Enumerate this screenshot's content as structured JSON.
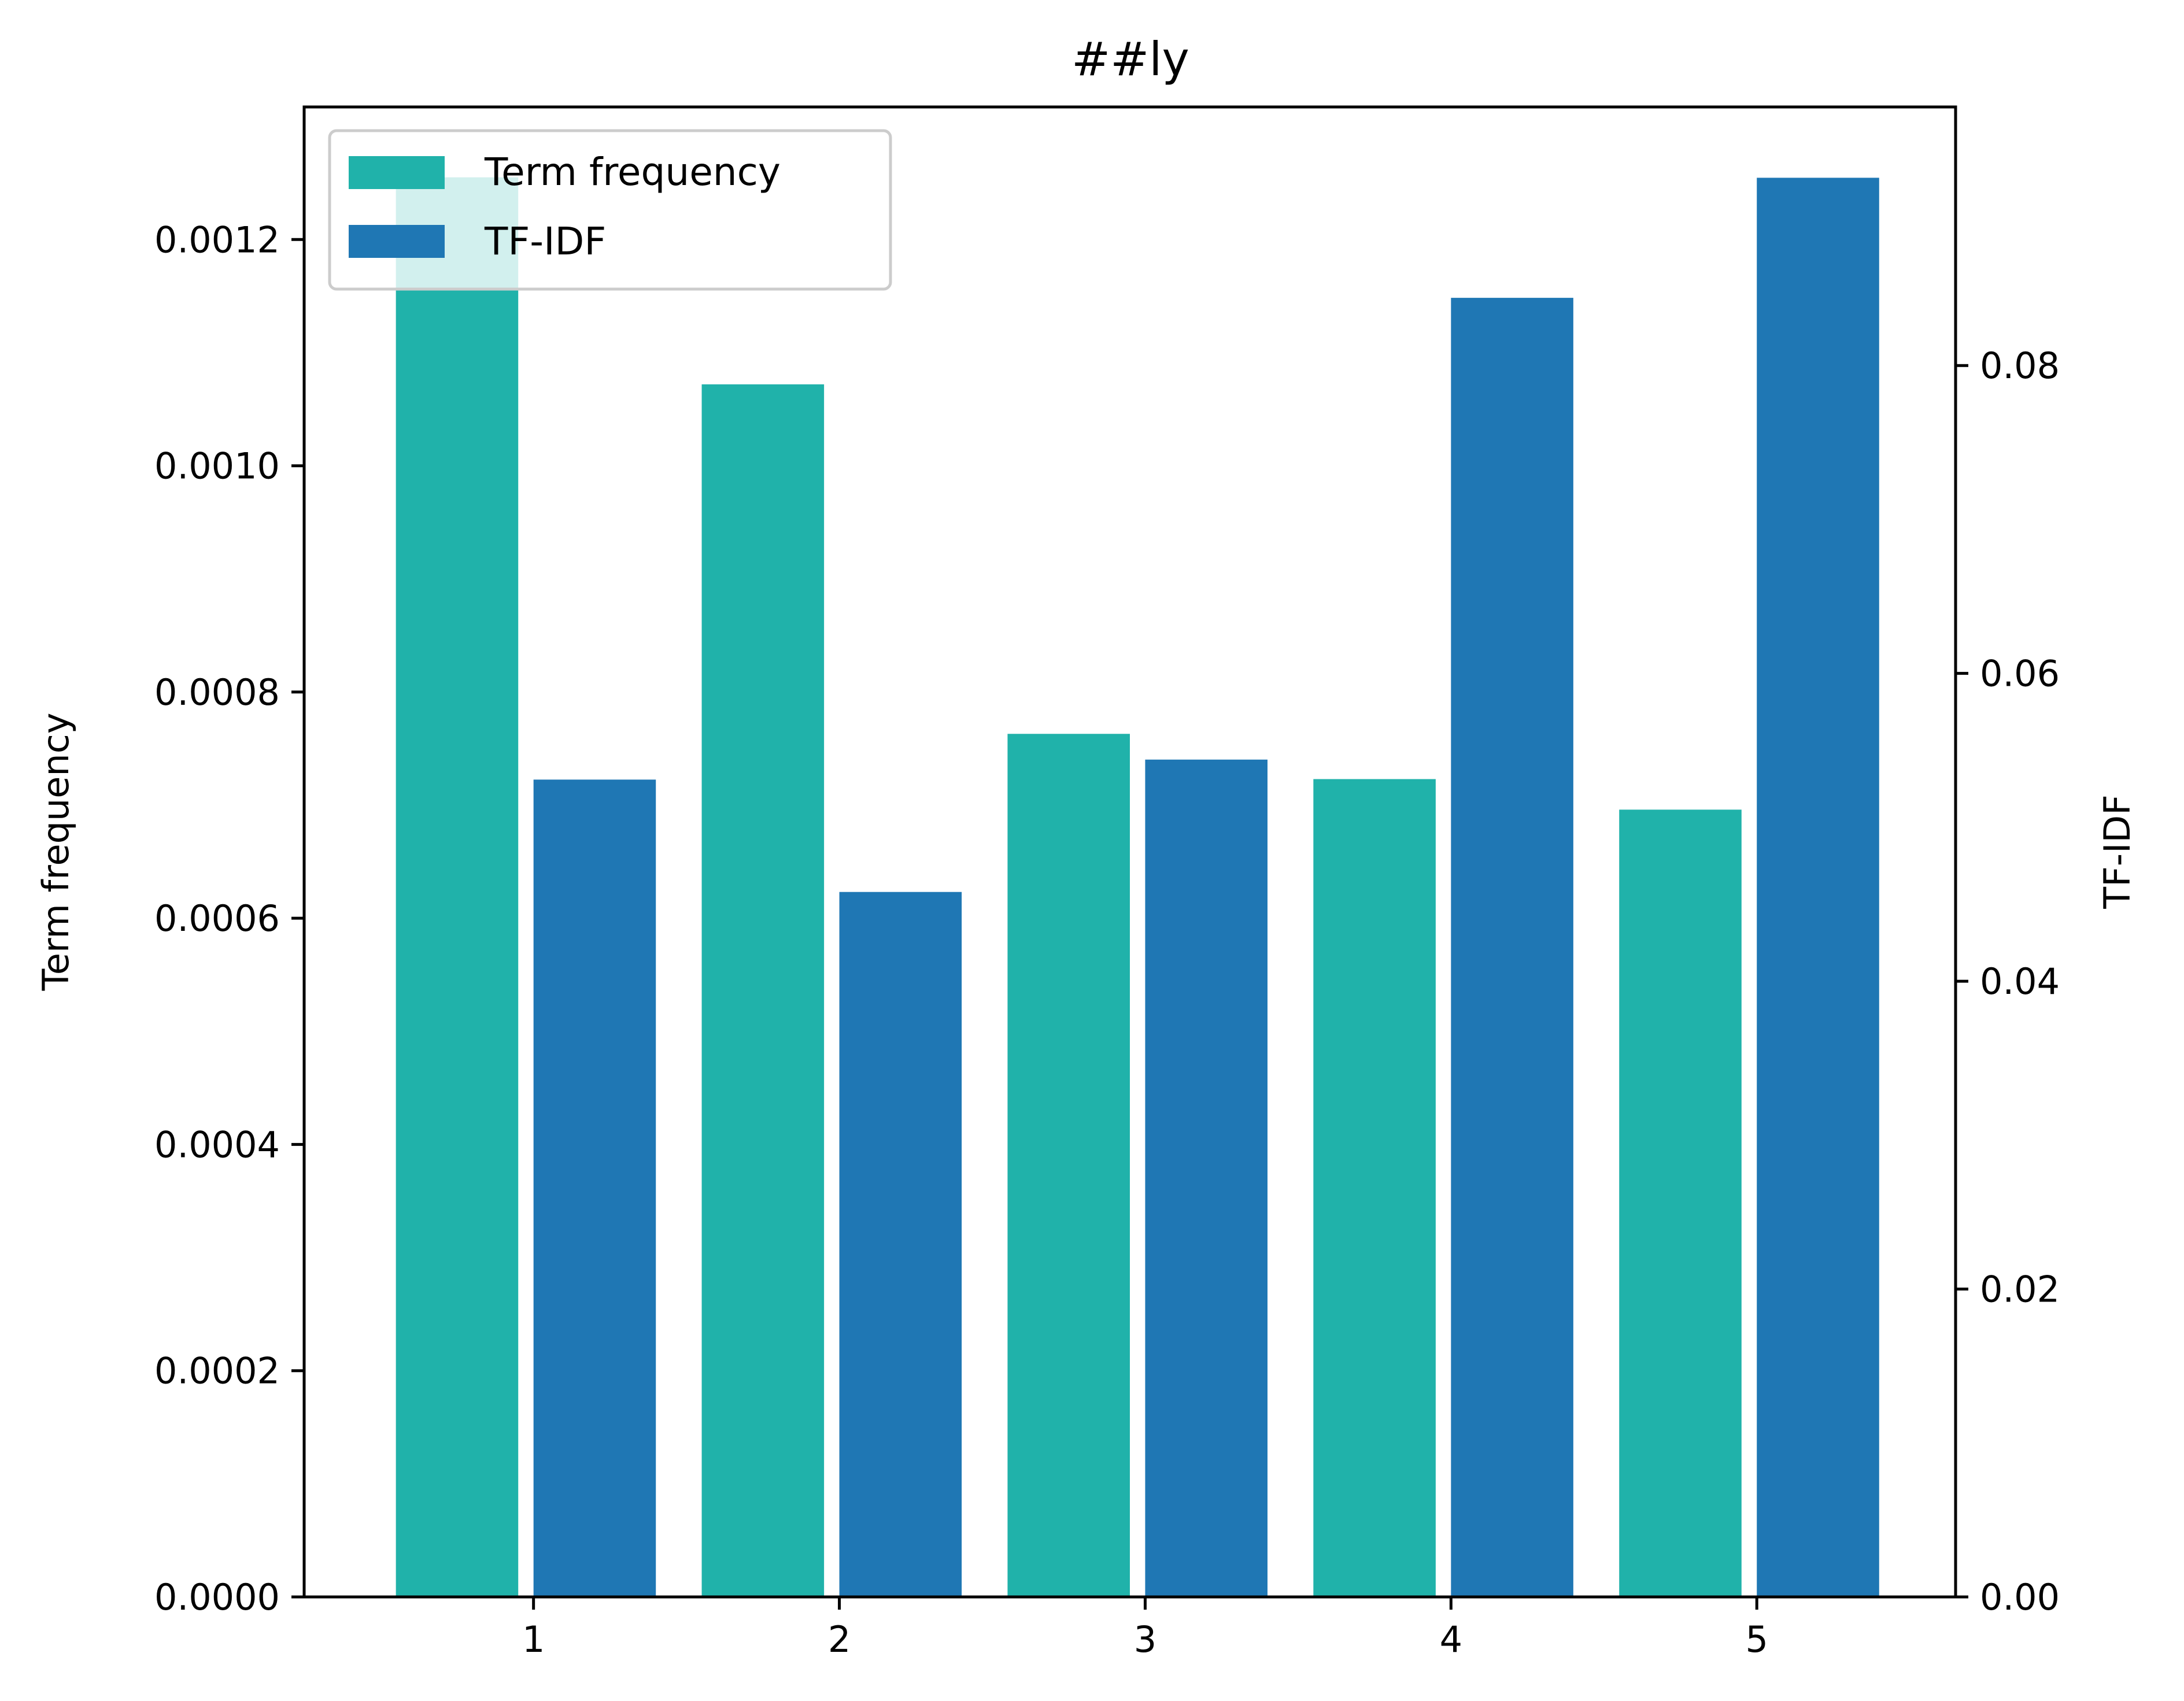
{
  "chart_data": {
    "type": "bar",
    "title": "##ly",
    "x": [
      1,
      2,
      3,
      4,
      5
    ],
    "xlim": [
      0.25,
      5.65
    ],
    "xticks": [
      "1",
      "2",
      "3",
      "4",
      "5"
    ],
    "series": [
      {
        "name": "Term frequency",
        "axis": "left",
        "color": "#20b2aa",
        "x": [
          0.75,
          1.75,
          2.75,
          3.75,
          4.75
        ],
        "values": [
          0.001255,
          0.001072,
          0.000763,
          0.000723,
          0.000696
        ]
      },
      {
        "name": "TF-IDF",
        "axis": "right",
        "color": "#1f77b4",
        "x": [
          1.2,
          2.2,
          3.2,
          4.2,
          5.2
        ],
        "values": [
          0.0531,
          0.0458,
          0.0544,
          0.0844,
          0.0922
        ]
      }
    ],
    "bar_width": 0.4,
    "left_axis": {
      "label": "Term frequency",
      "ylim": [
        0,
        0.0013172
      ],
      "ticks": [
        "0.0000",
        "0.0002",
        "0.0004",
        "0.0006",
        "0.0008",
        "0.0010",
        "0.0012"
      ],
      "tick_values": [
        0,
        0.0002,
        0.0004,
        0.0006,
        0.0008,
        0.001,
        0.0012
      ]
    },
    "right_axis": {
      "label": "TF-IDF",
      "ylim": [
        0,
        0.0968
      ],
      "ticks": [
        "0.00",
        "0.02",
        "0.04",
        "0.06",
        "0.08"
      ],
      "tick_values": [
        0,
        0.02,
        0.04,
        0.06,
        0.08
      ]
    },
    "grid": false,
    "legend_position": "upper-left"
  }
}
